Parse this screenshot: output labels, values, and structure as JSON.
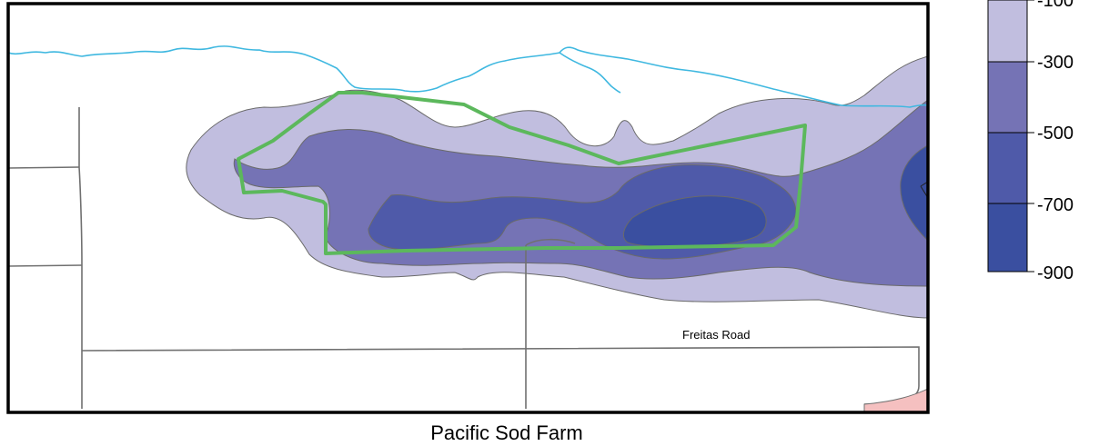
{
  "map": {
    "caption": "Pacific Sod Farm",
    "road_label": "Freitas Road"
  },
  "legend": {
    "classes": [
      {
        "label": "-100",
        "color": "#c1bedf"
      },
      {
        "label": "-300",
        "color": "#7573b5"
      },
      {
        "label": "-500",
        "color": "#4f5aa9"
      },
      {
        "label": "-700",
        "color": "#3a4fa0"
      },
      {
        "label": "-900",
        "color": ""
      }
    ]
  },
  "colors": {
    "contour_light": "#c1bedf",
    "contour_medium": "#7573b5",
    "contour_dark": "#4f5aa9",
    "contour_darkest": "#3a4fa0",
    "boundary_green": "#5cb85c",
    "stream_blue": "#3fb8e0",
    "road_gray": "#707070",
    "corner_pink": "#f5c0c0"
  }
}
